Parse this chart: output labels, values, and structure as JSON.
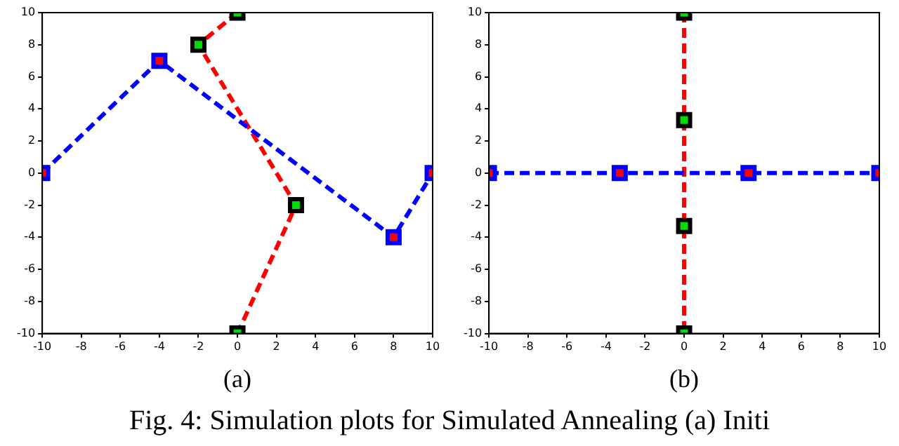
{
  "chart_data": [
    {
      "type": "line",
      "xlabel": "(a)",
      "xlim": [
        -10,
        10
      ],
      "xticks": [
        -10,
        -8,
        -6,
        -4,
        -2,
        0,
        2,
        4,
        6,
        8,
        10
      ],
      "ylim": [
        -10,
        10
      ],
      "yticks": [
        -10,
        -8,
        -6,
        -4,
        -2,
        0,
        2,
        4,
        6,
        8,
        10
      ],
      "grid": false,
      "legend": false,
      "marker": "square",
      "line_style": "dashed",
      "series": [
        {
          "color": "#0000ff",
          "x": [
            -10,
            -4,
            8,
            10
          ],
          "values": [
            0,
            7,
            -4,
            0
          ]
        },
        {
          "color": "#ff0000",
          "x": [
            0,
            -2,
            3,
            0
          ],
          "values": [
            10,
            8,
            -2,
            -10
          ]
        }
      ],
      "annotations": [
        "Fig. 4: Simulation plots for Simulated Annealing (a) Initi"
      ]
    },
    {
      "type": "line",
      "xlabel": "(b)",
      "xlim": [
        -10,
        10
      ],
      "xticks": [
        -10,
        -8,
        -6,
        -4,
        -2,
        0,
        2,
        4,
        6,
        8,
        10
      ],
      "ylim": [
        -10,
        10
      ],
      "yticks": [
        -10,
        -8,
        -6,
        -4,
        -2,
        0,
        2,
        4,
        6,
        8,
        10
      ],
      "grid": false,
      "legend": false,
      "marker": "square",
      "line_style": "dashed",
      "series": [
        {
          "color": "#0000ff",
          "x": [
            -10,
            -3.3,
            3.3,
            10
          ],
          "values": [
            0,
            0,
            0,
            0
          ]
        },
        {
          "color": "#ff0000",
          "x": [
            0,
            0,
            0,
            0
          ],
          "values": [
            10,
            3.3,
            -3.3,
            -10
          ]
        }
      ]
    }
  ]
}
